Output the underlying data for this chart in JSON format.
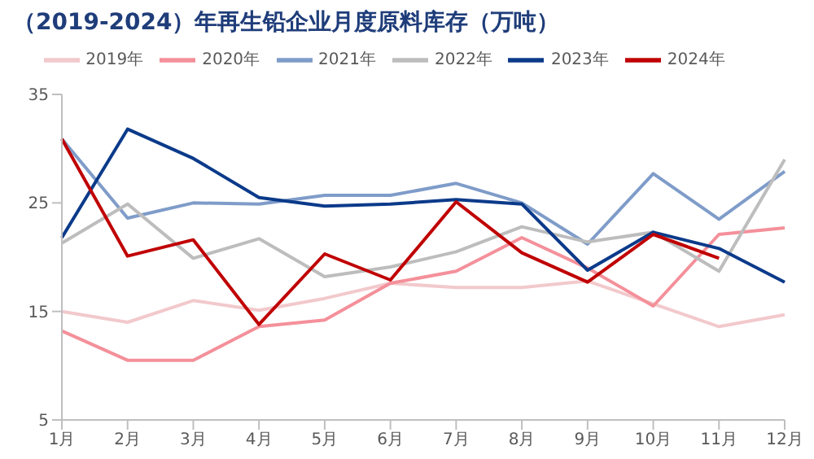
{
  "chart_data": {
    "type": "line",
    "title": "（2019-2024）年再生铅企业月度原料库存（万吨）",
    "categories": [
      "1月",
      "2月",
      "3月",
      "4月",
      "5月",
      "6月",
      "7月",
      "8月",
      "9月",
      "10月",
      "11月",
      "12月"
    ],
    "series": [
      {
        "name": "2019年",
        "color": "#f2c9cc",
        "values": [
          15,
          14,
          16,
          15.1,
          16.2,
          17.6,
          17.2,
          17.2,
          17.8,
          15.7,
          13.6,
          14.7
        ]
      },
      {
        "name": "2020年",
        "color": "#f4909a",
        "values": [
          13.2,
          10.5,
          10.5,
          13.6,
          14.2,
          17.6,
          18.7,
          21.8,
          19,
          15.5,
          22.1,
          22.7
        ]
      },
      {
        "name": "2021年",
        "color": "#7f9cc9",
        "values": [
          30.9,
          23.6,
          25,
          24.9,
          25.7,
          25.7,
          26.8,
          25,
          21.2,
          27.7,
          23.5,
          27.9
        ]
      },
      {
        "name": "2022年",
        "color": "#bdbdbd",
        "values": [
          21.3,
          24.9,
          19.9,
          21.7,
          18.2,
          19.1,
          20.5,
          22.8,
          21.4,
          22.3,
          18.7,
          29
        ]
      },
      {
        "name": "2023年",
        "color": "#0b3a8a",
        "values": [
          21.8,
          31.8,
          29.1,
          25.5,
          24.7,
          24.9,
          25.3,
          24.9,
          18.8,
          22.3,
          20.8,
          17.7
        ]
      },
      {
        "name": "2024年",
        "color": "#c00000",
        "values": [
          30.9,
          20.1,
          21.6,
          13.8,
          20.3,
          17.9,
          25.1,
          20.4,
          17.7,
          22.1,
          19.9,
          null
        ]
      }
    ],
    "ylim": [
      5,
      35
    ],
    "yticks": [
      5,
      15,
      25,
      35
    ],
    "grid": false,
    "legend": "top",
    "marker": "none",
    "line_style": "solid"
  }
}
